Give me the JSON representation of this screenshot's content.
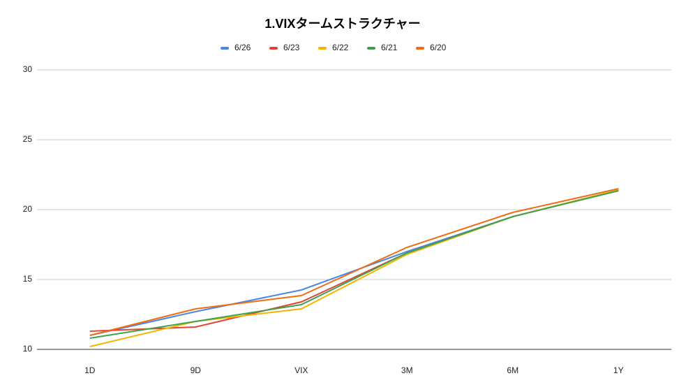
{
  "chart_data": {
    "type": "line",
    "title": "1.VIXタームストラクチャー",
    "categories": [
      "1D",
      "9D",
      "VIX",
      "3M",
      "6M",
      "1Y"
    ],
    "series": [
      {
        "name": "6/26",
        "color": "#4a86e8",
        "values": [
          11.0,
          12.7,
          14.25,
          17.0,
          19.5,
          21.4
        ]
      },
      {
        "name": "6/23",
        "color": "#e0453a",
        "values": [
          11.3,
          11.6,
          13.4,
          16.9,
          19.5,
          21.4
        ]
      },
      {
        "name": "6/22",
        "color": "#f4b400",
        "values": [
          10.2,
          12.0,
          12.9,
          16.8,
          19.5,
          21.4
        ]
      },
      {
        "name": "6/21",
        "color": "#3fa14c",
        "values": [
          10.8,
          12.0,
          13.2,
          16.9,
          19.5,
          21.35
        ]
      },
      {
        "name": "6/20",
        "color": "#f26b0f",
        "values": [
          11.0,
          12.9,
          13.85,
          17.3,
          19.8,
          21.5
        ]
      }
    ],
    "ylim": [
      10,
      30
    ],
    "yticks": [
      10,
      15,
      20,
      25,
      30
    ],
    "grid": true
  }
}
